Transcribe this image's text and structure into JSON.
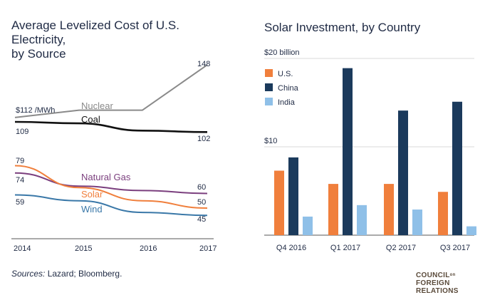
{
  "header": {
    "left_title_line1": "Average Levelized Cost of U.S. Electricity,",
    "left_title_line2": "by Source",
    "right_title": "Solar Investment, by Country"
  },
  "footer": {
    "sources_label": "Sources:",
    "sources_text": " Lazard; Bloomberg.",
    "logo_line1": "COUNCIL",
    "logo_on": "on",
    "logo_line2": "FOREIGN",
    "logo_line3": "RELATIONS"
  },
  "colors": {
    "nuclear": "#8a8a8a",
    "coal": "#111111",
    "natural_gas": "#7b3f7e",
    "solar": "#f07f3c",
    "wind": "#3a78a8",
    "us": "#f07f3c",
    "china": "#1b3a5c",
    "india": "#8fc0e8",
    "text": "#1f2a44"
  },
  "chart_data": [
    {
      "type": "line",
      "title": "Average Levelized Cost of U.S. Electricity, by Source",
      "x": [
        "2014",
        "2015",
        "2016",
        "2017"
      ],
      "unit_label": "$112 /MWh",
      "series": [
        {
          "name": "Nuclear",
          "key": "nuclear",
          "values": [
            112,
            117,
            117,
            148
          ],
          "start_label": "",
          "end_label": "148"
        },
        {
          "name": "Coal",
          "key": "coal",
          "values": [
            109,
            108,
            103,
            102
          ],
          "start_label": "109",
          "end_label": "102"
        },
        {
          "name": "Natural Gas",
          "key": "natural_gas",
          "values": [
            74,
            65,
            62,
            60
          ],
          "start_label": "74",
          "end_label": "60"
        },
        {
          "name": "Solar",
          "key": "solar",
          "values": [
            79,
            64,
            55,
            50
          ],
          "start_label": "79",
          "end_label": "50"
        },
        {
          "name": "Wind",
          "key": "wind",
          "values": [
            59,
            55,
            47,
            45
          ],
          "start_label": "59",
          "end_label": "45"
        }
      ]
    },
    {
      "type": "bar",
      "title": "Solar Investment, by Country",
      "categories": [
        "Q4 2016",
        "Q1 2017",
        "Q2 2017",
        "Q3 2017"
      ],
      "yticks": [
        {
          "value": 20,
          "label": "$20 billion"
        },
        {
          "value": 10,
          "label": "$10"
        }
      ],
      "ylim": [
        0,
        20
      ],
      "legend": "top-left",
      "series": [
        {
          "name": "U.S.",
          "key": "us",
          "values": [
            7.3,
            5.8,
            5.8,
            4.9
          ]
        },
        {
          "name": "China",
          "key": "china",
          "values": [
            8.8,
            18.9,
            14.1,
            15.1
          ]
        },
        {
          "name": "India",
          "key": "india",
          "values": [
            2.1,
            3.4,
            2.9,
            1.0
          ]
        }
      ]
    }
  ]
}
